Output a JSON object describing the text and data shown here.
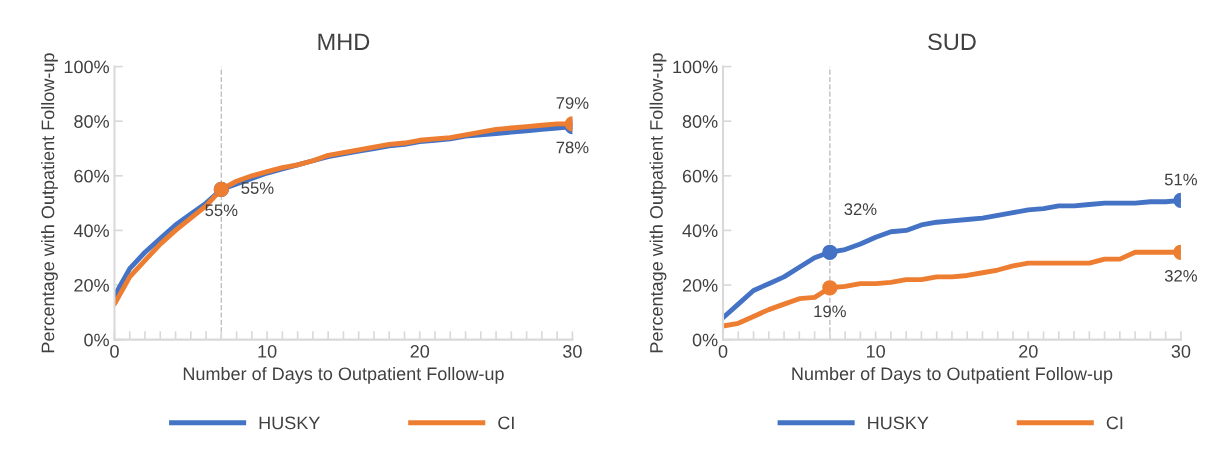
{
  "chart_data": [
    {
      "type": "line",
      "title": "MHD",
      "xlabel": "Number of Days to Outpatient Follow-up",
      "ylabel": "Percentage with Outpatient Follow-up",
      "x": [
        0,
        1,
        2,
        3,
        4,
        5,
        6,
        7,
        8,
        9,
        10,
        11,
        12,
        13,
        14,
        15,
        16,
        17,
        18,
        19,
        20,
        21,
        22,
        23,
        24,
        25,
        26,
        27,
        28,
        29,
        30
      ],
      "series": [
        {
          "name": "HUSKY",
          "color": "#4472c4",
          "values": [
            16,
            26,
            32,
            37,
            42,
            46,
            50,
            55,
            57,
            59,
            61,
            62.5,
            64,
            65.5,
            67,
            68,
            69,
            70,
            71,
            71.5,
            72.5,
            73,
            73.5,
            74.5,
            75,
            75.5,
            76,
            76.5,
            77,
            77.5,
            78
          ],
          "value_labels": [
            null,
            null,
            null,
            null,
            null,
            null,
            null,
            "55%",
            null,
            null,
            null,
            null,
            null,
            null,
            null,
            null,
            null,
            null,
            null,
            null,
            null,
            null,
            null,
            null,
            null,
            null,
            null,
            null,
            null,
            null,
            "78%"
          ]
        },
        {
          "name": "CI",
          "color": "#ed7d31",
          "values": [
            13,
            23,
            29,
            35,
            40,
            44.5,
            49,
            55,
            58,
            60,
            61.5,
            63,
            64,
            65.5,
            67.5,
            68.5,
            69.5,
            70.5,
            71.5,
            72,
            73,
            73.5,
            74,
            75,
            76,
            77,
            77.5,
            78,
            78.5,
            79,
            79
          ],
          "value_labels": [
            null,
            null,
            null,
            null,
            null,
            null,
            null,
            "55%",
            null,
            null,
            null,
            null,
            null,
            null,
            null,
            null,
            null,
            null,
            null,
            null,
            null,
            null,
            null,
            null,
            null,
            null,
            null,
            null,
            null,
            null,
            "79%"
          ]
        }
      ],
      "xlim": [
        0,
        30
      ],
      "xticks": [
        0,
        {
          "value": 1,
          "label": null
        },
        {
          "value": 2,
          "label": null
        },
        {
          "value": 3,
          "label": null
        },
        {
          "value": 4,
          "label": null
        },
        {
          "value": 5,
          "label": null
        },
        {
          "value": 6,
          "label": null
        },
        {
          "value": 7,
          "label": null
        },
        {
          "value": 8,
          "label": null
        },
        {
          "value": 9,
          "label": null
        },
        10,
        {
          "value": 11,
          "label": null
        },
        {
          "value": 12,
          "label": null
        },
        {
          "value": 13,
          "label": null
        },
        {
          "value": 14,
          "label": null
        },
        {
          "value": 15,
          "label": null
        },
        {
          "value": 16,
          "label": null
        },
        {
          "value": 17,
          "label": null
        },
        {
          "value": 18,
          "label": null
        },
        {
          "value": 19,
          "label": null
        },
        20,
        {
          "value": 21,
          "label": null
        },
        {
          "value": 22,
          "label": null
        },
        {
          "value": 23,
          "label": null
        },
        {
          "value": 24,
          "label": null
        },
        {
          "value": 25,
          "label": null
        },
        {
          "value": 26,
          "label": null
        },
        {
          "value": 27,
          "label": null
        },
        {
          "value": 28,
          "label": null
        },
        {
          "value": 29,
          "label": null
        },
        30
      ],
      "ylim": [
        0,
        100
      ],
      "yticks": [
        {
          "value": 0,
          "label": "0%"
        },
        {
          "value": 20,
          "label": "20%"
        },
        {
          "value": 40,
          "label": "40%"
        },
        {
          "value": 60,
          "label": "60%"
        },
        {
          "value": 80,
          "label": "80%"
        },
        {
          "value": 100,
          "label": "100%"
        }
      ],
      "ref_lines": [
        {
          "axis": "x",
          "value": 7,
          "color": "#bfbfbf",
          "line_style": "dashed"
        }
      ],
      "grid": false,
      "legend": "bottom",
      "line_style": "solid"
    },
    {
      "type": "line",
      "title": "SUD",
      "xlabel": "Number of Days to Outpatient Follow-up",
      "ylabel": "Percentage with Outpatient Follow-up",
      "x": [
        0,
        1,
        2,
        3,
        4,
        5,
        6,
        7,
        8,
        9,
        10,
        11,
        12,
        13,
        14,
        15,
        16,
        17,
        18,
        19,
        20,
        21,
        22,
        23,
        24,
        25,
        26,
        27,
        28,
        29,
        30
      ],
      "series": [
        {
          "name": "HUSKY",
          "color": "#4472c4",
          "values": [
            8,
            13,
            18,
            20.5,
            23,
            26.5,
            30,
            32,
            33,
            35,
            37.5,
            39.5,
            40,
            42,
            43,
            43.5,
            44,
            44.5,
            45.5,
            46.5,
            47.5,
            48,
            49,
            49,
            49.5,
            50,
            50,
            50,
            50.5,
            50.5,
            51
          ],
          "value_labels": [
            null,
            null,
            null,
            null,
            null,
            null,
            null,
            "32%",
            null,
            null,
            null,
            null,
            null,
            null,
            null,
            null,
            null,
            null,
            null,
            null,
            null,
            null,
            null,
            null,
            null,
            null,
            null,
            null,
            null,
            null,
            "51%"
          ]
        },
        {
          "name": "CI",
          "color": "#ed7d31",
          "values": [
            5,
            6,
            8.5,
            11,
            13,
            15,
            15.5,
            19,
            19.5,
            20.5,
            20.5,
            21,
            22,
            22,
            23,
            23,
            23.5,
            24.5,
            25.5,
            27,
            28,
            28,
            28,
            28,
            28,
            29.5,
            29.5,
            32,
            32,
            32,
            32
          ],
          "value_labels": [
            null,
            null,
            null,
            null,
            null,
            null,
            null,
            "19%",
            null,
            null,
            null,
            null,
            null,
            null,
            null,
            null,
            null,
            null,
            null,
            null,
            null,
            null,
            null,
            null,
            null,
            null,
            null,
            null,
            null,
            null,
            "32%"
          ]
        }
      ],
      "xlim": [
        0,
        30
      ],
      "xticks": [
        0,
        {
          "value": 1,
          "label": null
        },
        {
          "value": 2,
          "label": null
        },
        {
          "value": 3,
          "label": null
        },
        {
          "value": 4,
          "label": null
        },
        {
          "value": 5,
          "label": null
        },
        {
          "value": 6,
          "label": null
        },
        {
          "value": 7,
          "label": null
        },
        {
          "value": 8,
          "label": null
        },
        {
          "value": 9,
          "label": null
        },
        10,
        {
          "value": 11,
          "label": null
        },
        {
          "value": 12,
          "label": null
        },
        {
          "value": 13,
          "label": null
        },
        {
          "value": 14,
          "label": null
        },
        {
          "value": 15,
          "label": null
        },
        {
          "value": 16,
          "label": null
        },
        {
          "value": 17,
          "label": null
        },
        {
          "value": 18,
          "label": null
        },
        {
          "value": 19,
          "label": null
        },
        20,
        {
          "value": 21,
          "label": null
        },
        {
          "value": 22,
          "label": null
        },
        {
          "value": 23,
          "label": null
        },
        {
          "value": 24,
          "label": null
        },
        {
          "value": 25,
          "label": null
        },
        {
          "value": 26,
          "label": null
        },
        {
          "value": 27,
          "label": null
        },
        {
          "value": 28,
          "label": null
        },
        {
          "value": 29,
          "label": null
        },
        30
      ],
      "ylim": [
        0,
        100
      ],
      "yticks": [
        {
          "value": 0,
          "label": "0%"
        },
        {
          "value": 20,
          "label": "20%"
        },
        {
          "value": 40,
          "label": "40%"
        },
        {
          "value": 60,
          "label": "60%"
        },
        {
          "value": 80,
          "label": "80%"
        },
        {
          "value": 100,
          "label": "100%"
        }
      ],
      "ref_lines": [
        {
          "axis": "x",
          "value": 7,
          "color": "#bfbfbf",
          "line_style": "dashed"
        }
      ],
      "grid": false,
      "legend": "bottom",
      "line_style": "solid"
    }
  ]
}
